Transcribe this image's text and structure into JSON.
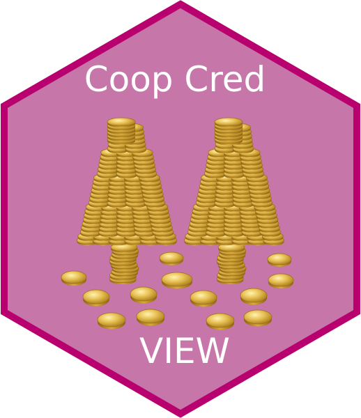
{
  "badge": {
    "title": "Coop Cred",
    "subtitle": "VIEW",
    "colors": {
      "fill": "#c676a8",
      "border": "#b8006e",
      "text": "#ffffff",
      "coin_light": "#f6d873",
      "coin_mid": "#e2b341",
      "coin_dark": "#a77714"
    },
    "illustration": "two-coin-trees-icon"
  }
}
